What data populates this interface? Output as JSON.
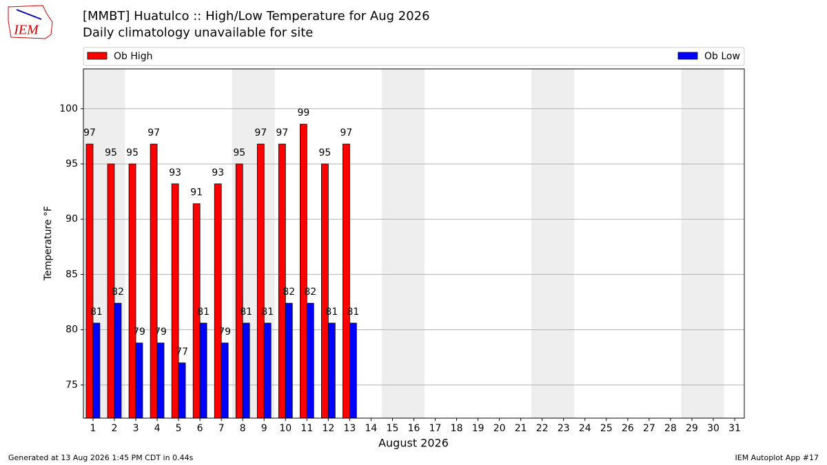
{
  "logo": "IEM",
  "footer_left": "Generated at 13 Aug 2026 1:45 PM CDT in 0.44s",
  "footer_right": "IEM Autoplot App #17",
  "chart_data": {
    "type": "bar",
    "title": "[MMBT] Huatulco :: High/Low Temperature for Aug 2026",
    "subtitle": "Daily climatology unavailable for site",
    "xlabel": "August 2026",
    "ylabel": "Temperature °F",
    "categories": [
      "1",
      "2",
      "3",
      "4",
      "5",
      "6",
      "7",
      "8",
      "9",
      "10",
      "11",
      "12",
      "13",
      "14",
      "15",
      "16",
      "17",
      "18",
      "19",
      "20",
      "21",
      "22",
      "23",
      "24",
      "25",
      "26",
      "27",
      "28",
      "29",
      "30",
      "31"
    ],
    "series": [
      {
        "name": "Ob High",
        "color": "#ff0000",
        "values": [
          96.8,
          95,
          95,
          96.8,
          93.2,
          91.4,
          93.2,
          95,
          96.8,
          96.8,
          98.6,
          95,
          96.8,
          null,
          null,
          null,
          null,
          null,
          null,
          null,
          null,
          null,
          null,
          null,
          null,
          null,
          null,
          null,
          null,
          null,
          null
        ],
        "value_labels": [
          "97",
          "95",
          "95",
          "97",
          "93",
          "91",
          "93",
          "95",
          "97",
          "97",
          "99",
          "95",
          "97",
          null,
          null,
          null,
          null,
          null,
          null,
          null,
          null,
          null,
          null,
          null,
          null,
          null,
          null,
          null,
          null,
          null,
          null
        ]
      },
      {
        "name": "Ob Low",
        "color": "#0000ff",
        "values": [
          80.6,
          82.4,
          78.8,
          78.8,
          77,
          80.6,
          78.8,
          80.6,
          80.6,
          82.4,
          82.4,
          80.6,
          80.6,
          null,
          null,
          null,
          null,
          null,
          null,
          null,
          null,
          null,
          null,
          null,
          null,
          null,
          null,
          null,
          null,
          null,
          null
        ],
        "value_labels": [
          "81",
          "82",
          "79",
          "79",
          "77",
          "81",
          "79",
          "81",
          "81",
          "82",
          "82",
          "81",
          "81",
          null,
          null,
          null,
          null,
          null,
          null,
          null,
          null,
          null,
          null,
          null,
          null,
          null,
          null,
          null,
          null,
          null,
          null
        ]
      }
    ],
    "ylim": [
      72,
      103.6
    ],
    "yticks": [
      75,
      80,
      85,
      90,
      95,
      100
    ],
    "grid": true
  }
}
